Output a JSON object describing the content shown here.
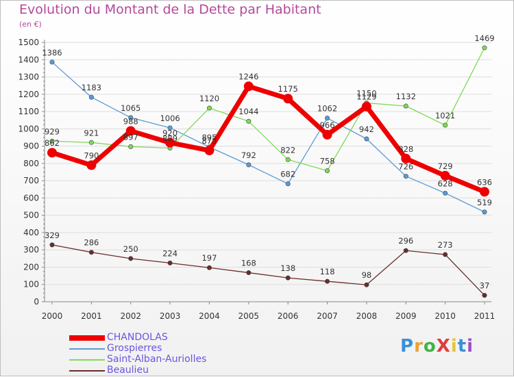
{
  "title": "Evolution du Montant de la Dette par Habitant",
  "unit": "(en €)",
  "brand": {
    "text": "ProXiti",
    "letter_colors": [
      "#3b8fd9",
      "#e8a23a",
      "#3bb54a",
      "#e03a3a",
      "#e8c23a",
      "#3b8fd9",
      "#9b4fc4"
    ]
  },
  "colors": {
    "title": "#b5479b",
    "axis": "#888888",
    "grid": "#dddddd"
  },
  "chart_data": {
    "type": "line",
    "title": "Evolution du Montant de la Dette par Habitant",
    "ylabel": "(en €)",
    "x": [
      "2000",
      "2001",
      "2002",
      "2003",
      "2004",
      "2005",
      "2006",
      "2007",
      "2008",
      "2009",
      "2010",
      "2011"
    ],
    "ylim": [
      0,
      1500
    ],
    "yticks": [
      0,
      100,
      200,
      300,
      400,
      500,
      600,
      700,
      800,
      900,
      1000,
      1100,
      1200,
      1300,
      1400,
      1500
    ],
    "grid": "horizontal",
    "legend": "bottom-left",
    "series": [
      {
        "name": "CHANDOLAS",
        "color": "#ee0000",
        "emphasis": true,
        "values": [
          862,
          790,
          988,
          920,
          875,
          1246,
          1175,
          966,
          1129,
          828,
          729,
          636
        ]
      },
      {
        "name": "Grospierres",
        "color": "#5a9bd5",
        "emphasis": false,
        "values": [
          1386,
          1183,
          1065,
          1006,
          895,
          792,
          682,
          1062,
          942,
          726,
          628,
          519
        ]
      },
      {
        "name": "Saint-Alban-Auriolles",
        "color": "#7ed957",
        "emphasis": false,
        "values": [
          929,
          921,
          897,
          889,
          1120,
          1044,
          822,
          758,
          1150,
          1132,
          1021,
          1469
        ]
      },
      {
        "name": "Beaulieu",
        "color": "#6b2b2b",
        "emphasis": false,
        "values": [
          329,
          286,
          250,
          224,
          197,
          168,
          138,
          118,
          98,
          296,
          273,
          37
        ]
      }
    ]
  }
}
